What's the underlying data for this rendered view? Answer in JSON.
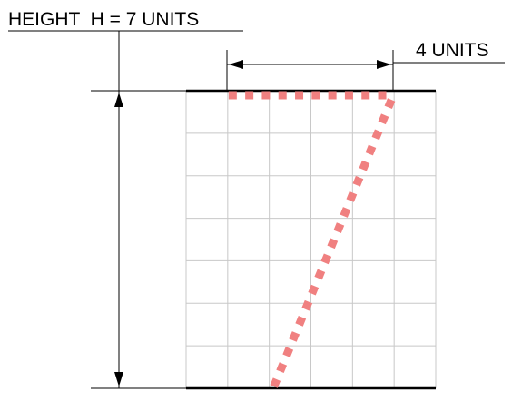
{
  "labels": {
    "height_label": "HEIGHT  H = 7 UNITS",
    "width_label": "4 UNITS"
  },
  "diagram": {
    "grid_columns": 6,
    "grid_rows": 7,
    "top_dashed_span_units": 4,
    "slant_line_start_unit": 4,
    "slant_line_end_unit": 2,
    "colors": {
      "grid_line": "#c8c8c8",
      "outline": "#000000",
      "dashed_line": "#f08080"
    }
  }
}
